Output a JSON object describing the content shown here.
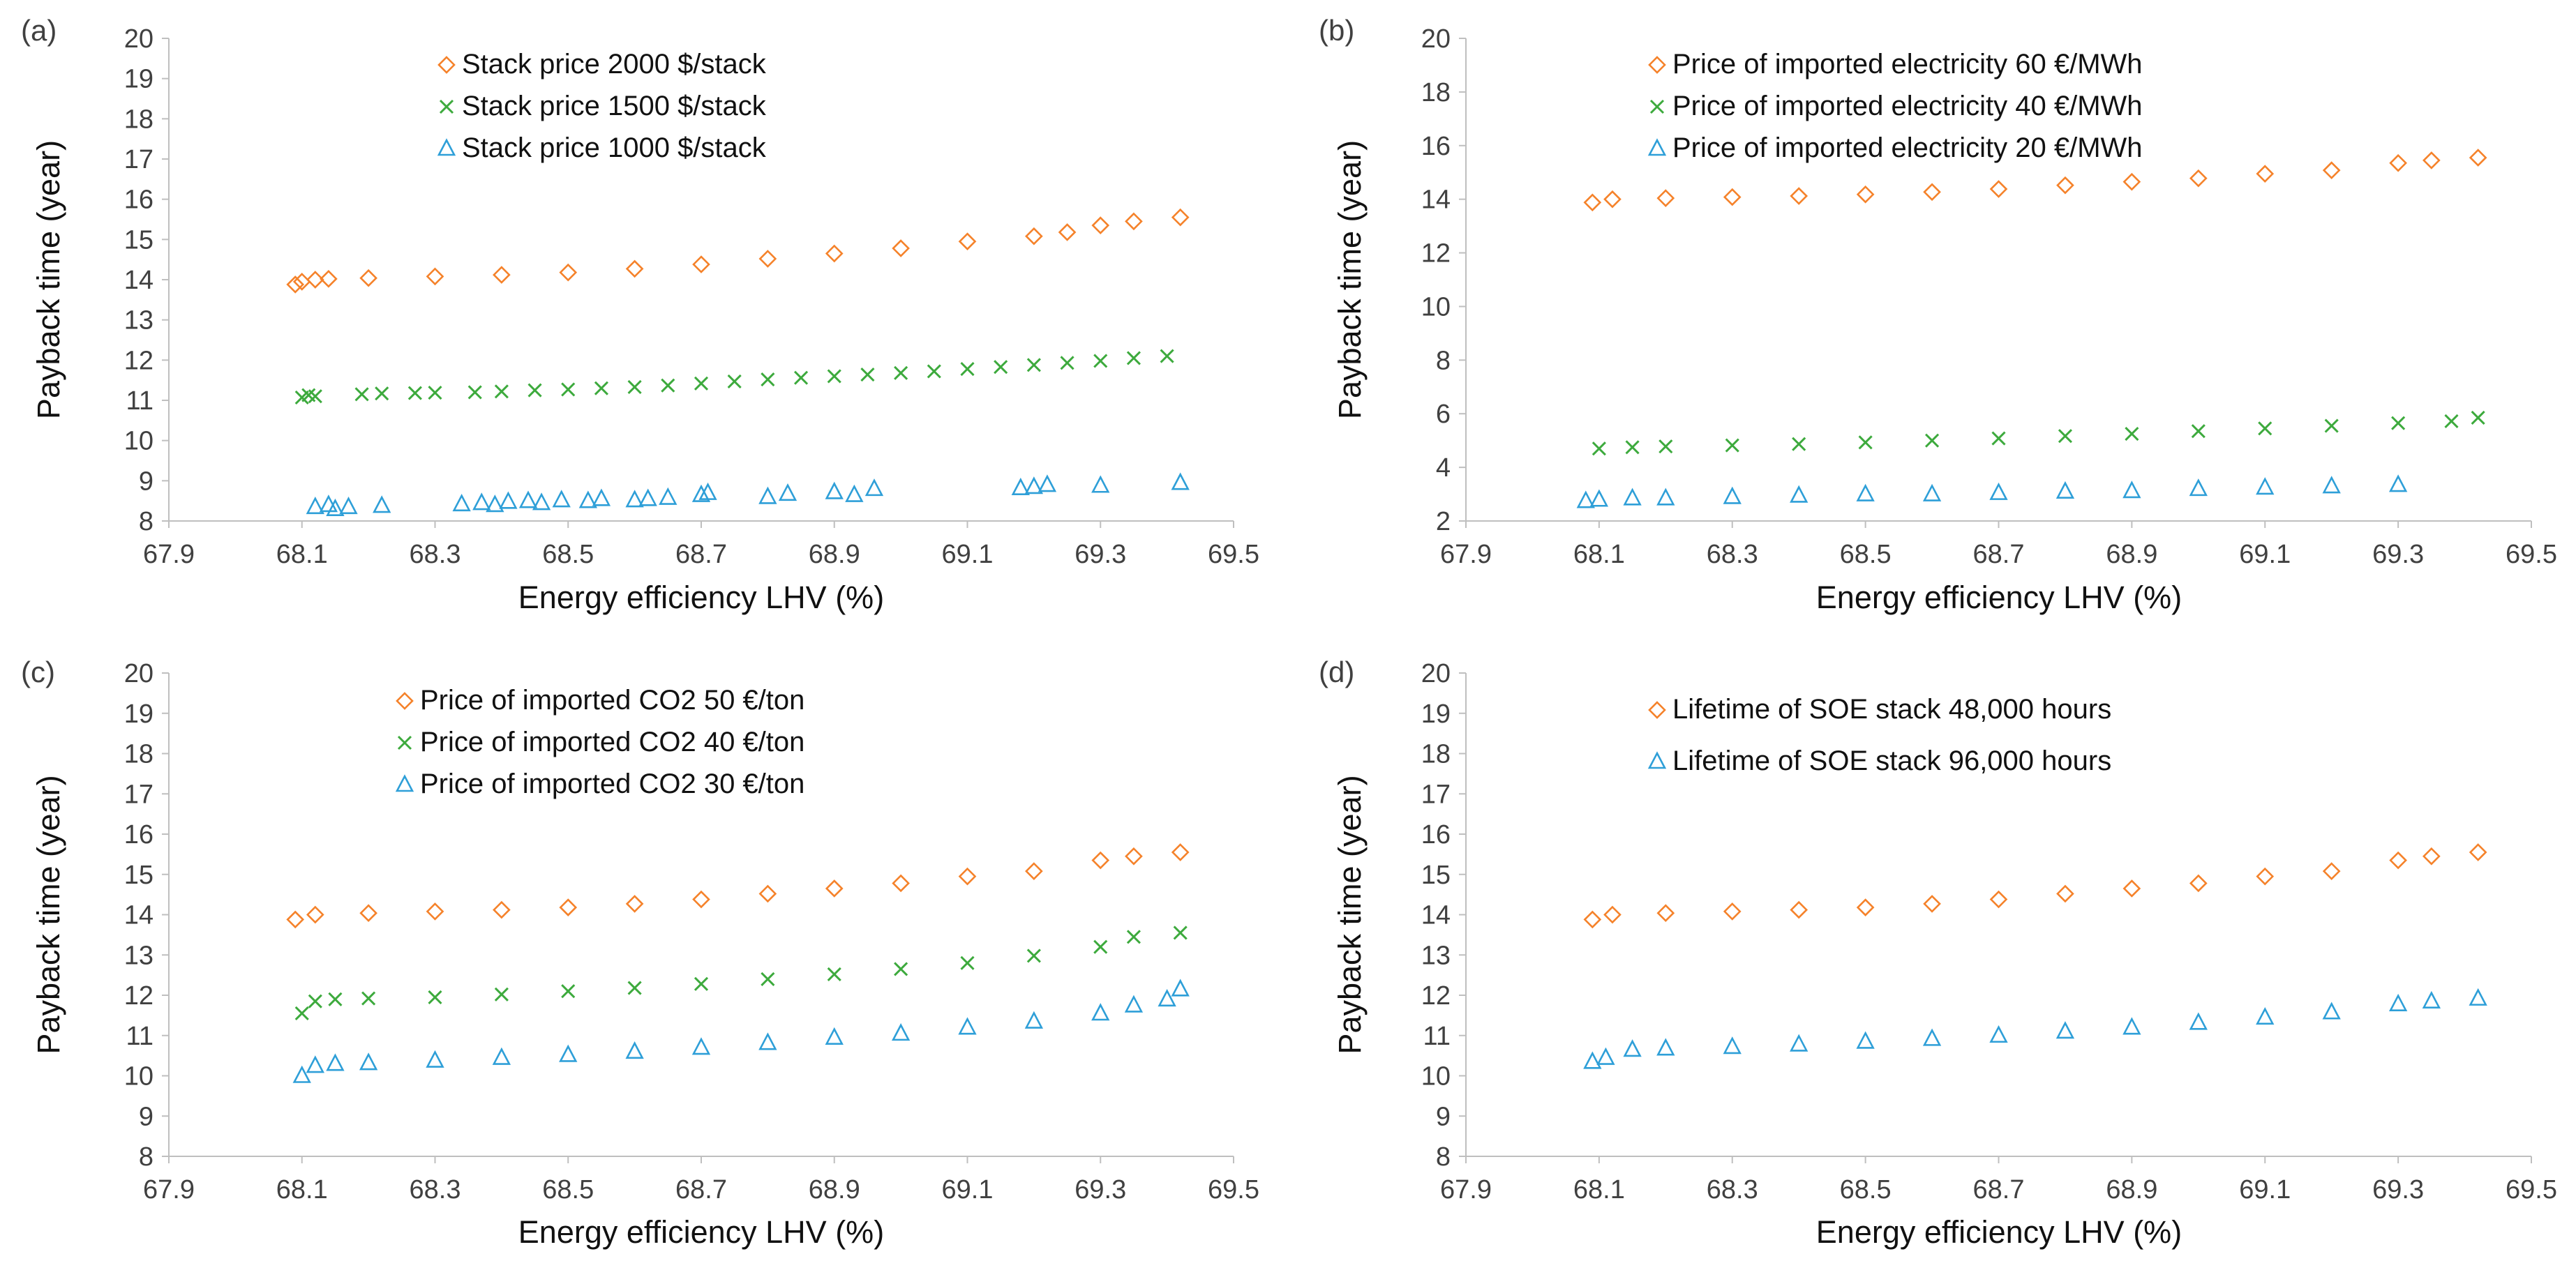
{
  "colors": {
    "orange": "#F5822A",
    "green": "#3DAA3D",
    "blue": "#2E9FD8",
    "axis": "#BFBFBF",
    "text": "#404040"
  },
  "chart_data": [
    {
      "panel": "(a)",
      "type": "scatter",
      "xlabel": "Energy efficiency LHV (%)",
      "ylabel": "Payback time (year)",
      "xlim": [
        67.9,
        69.5
      ],
      "ylim": [
        8,
        20
      ],
      "xticks": [
        "67.9",
        "68.1",
        "68.3",
        "68.5",
        "68.7",
        "68.9",
        "69.1",
        "69.3",
        "69.5"
      ],
      "yticks": [
        "8",
        "9",
        "10",
        "11",
        "12",
        "13",
        "14",
        "15",
        "16",
        "17",
        "18",
        "19",
        "20"
      ],
      "legend_position": "top-center",
      "series": [
        {
          "name": "Stack price 2000 $/stack",
          "marker": "diamond",
          "color": "#F5822A",
          "points": [
            [
              68.09,
              13.88
            ],
            [
              68.1,
              13.95
            ],
            [
              68.12,
              14.0
            ],
            [
              68.14,
              14.02
            ],
            [
              68.2,
              14.04
            ],
            [
              68.3,
              14.08
            ],
            [
              68.4,
              14.12
            ],
            [
              68.5,
              14.18
            ],
            [
              68.6,
              14.27
            ],
            [
              68.7,
              14.38
            ],
            [
              68.8,
              14.52
            ],
            [
              68.9,
              14.65
            ],
            [
              69.0,
              14.78
            ],
            [
              69.1,
              14.95
            ],
            [
              69.2,
              15.08
            ],
            [
              69.25,
              15.18
            ],
            [
              69.3,
              15.35
            ],
            [
              69.35,
              15.45
            ],
            [
              69.42,
              15.55
            ]
          ]
        },
        {
          "name": "Stack price 1500 $/stack",
          "marker": "x",
          "color": "#3DAA3D",
          "points": [
            [
              68.1,
              11.07
            ],
            [
              68.11,
              11.13
            ],
            [
              68.12,
              11.1
            ],
            [
              68.19,
              11.15
            ],
            [
              68.22,
              11.17
            ],
            [
              68.27,
              11.18
            ],
            [
              68.3,
              11.19
            ],
            [
              68.36,
              11.2
            ],
            [
              68.4,
              11.22
            ],
            [
              68.45,
              11.25
            ],
            [
              68.5,
              11.27
            ],
            [
              68.55,
              11.3
            ],
            [
              68.6,
              11.33
            ],
            [
              68.65,
              11.37
            ],
            [
              68.7,
              11.42
            ],
            [
              68.75,
              11.47
            ],
            [
              68.8,
              11.52
            ],
            [
              68.85,
              11.56
            ],
            [
              68.9,
              11.6
            ],
            [
              68.95,
              11.64
            ],
            [
              69.0,
              11.68
            ],
            [
              69.05,
              11.72
            ],
            [
              69.1,
              11.78
            ],
            [
              69.15,
              11.83
            ],
            [
              69.2,
              11.88
            ],
            [
              69.25,
              11.93
            ],
            [
              69.3,
              11.98
            ],
            [
              69.35,
              12.05
            ],
            [
              69.4,
              12.1
            ]
          ]
        },
        {
          "name": "Stack price 1000 $/stack",
          "marker": "triangle",
          "color": "#2E9FD8",
          "points": [
            [
              68.12,
              8.35
            ],
            [
              68.14,
              8.4
            ],
            [
              68.15,
              8.3
            ],
            [
              68.17,
              8.35
            ],
            [
              68.22,
              8.38
            ],
            [
              68.34,
              8.42
            ],
            [
              68.37,
              8.45
            ],
            [
              68.39,
              8.4
            ],
            [
              68.41,
              8.48
            ],
            [
              68.44,
              8.5
            ],
            [
              68.46,
              8.45
            ],
            [
              68.49,
              8.52
            ],
            [
              68.53,
              8.5
            ],
            [
              68.55,
              8.55
            ],
            [
              68.6,
              8.52
            ],
            [
              68.62,
              8.55
            ],
            [
              68.65,
              8.58
            ],
            [
              68.7,
              8.65
            ],
            [
              68.71,
              8.7
            ],
            [
              68.8,
              8.6
            ],
            [
              68.83,
              8.68
            ],
            [
              68.9,
              8.72
            ],
            [
              68.93,
              8.65
            ],
            [
              68.96,
              8.8
            ],
            [
              69.18,
              8.82
            ],
            [
              69.2,
              8.85
            ],
            [
              69.22,
              8.9
            ],
            [
              69.3,
              8.88
            ],
            [
              69.42,
              8.95
            ]
          ]
        }
      ]
    },
    {
      "panel": "(b)",
      "type": "scatter",
      "xlabel": "Energy efficiency LHV (%)",
      "ylabel": "Payback time (year)",
      "xlim": [
        67.9,
        69.5
      ],
      "ylim": [
        2,
        20
      ],
      "xticks": [
        "67.9",
        "68.1",
        "68.3",
        "68.5",
        "68.7",
        "68.9",
        "69.1",
        "69.3",
        "69.5"
      ],
      "yticks": [
        "2",
        "4",
        "6",
        "8",
        "10",
        "12",
        "14",
        "16",
        "18",
        "20"
      ],
      "legend_position": "top-center",
      "series": [
        {
          "name": "Price of imported electricity 60 €/MWh",
          "marker": "diamond",
          "color": "#F5822A",
          "points": [
            [
              68.09,
              13.88
            ],
            [
              68.12,
              14.0
            ],
            [
              68.2,
              14.04
            ],
            [
              68.3,
              14.08
            ],
            [
              68.4,
              14.12
            ],
            [
              68.5,
              14.18
            ],
            [
              68.6,
              14.27
            ],
            [
              68.7,
              14.38
            ],
            [
              68.8,
              14.52
            ],
            [
              68.9,
              14.65
            ],
            [
              69.0,
              14.78
            ],
            [
              69.1,
              14.95
            ],
            [
              69.2,
              15.08
            ],
            [
              69.3,
              15.35
            ],
            [
              69.35,
              15.45
            ],
            [
              69.42,
              15.55
            ]
          ]
        },
        {
          "name": "Price of imported electricity 40 €/MWh",
          "marker": "x",
          "color": "#3DAA3D",
          "points": [
            [
              68.1,
              4.7
            ],
            [
              68.15,
              4.75
            ],
            [
              68.2,
              4.78
            ],
            [
              68.3,
              4.82
            ],
            [
              68.4,
              4.87
            ],
            [
              68.5,
              4.93
            ],
            [
              68.6,
              5.0
            ],
            [
              68.7,
              5.08
            ],
            [
              68.8,
              5.17
            ],
            [
              68.9,
              5.25
            ],
            [
              69.0,
              5.35
            ],
            [
              69.1,
              5.45
            ],
            [
              69.2,
              5.55
            ],
            [
              69.3,
              5.65
            ],
            [
              69.38,
              5.72
            ],
            [
              69.42,
              5.85
            ]
          ]
        },
        {
          "name": "Price of imported electricity 20 €/MWh",
          "marker": "triangle",
          "color": "#2E9FD8",
          "points": [
            [
              68.08,
              2.75
            ],
            [
              68.1,
              2.8
            ],
            [
              68.15,
              2.85
            ],
            [
              68.2,
              2.85
            ],
            [
              68.3,
              2.9
            ],
            [
              68.4,
              2.95
            ],
            [
              68.5,
              3.0
            ],
            [
              68.6,
              3.0
            ],
            [
              68.7,
              3.05
            ],
            [
              68.8,
              3.1
            ],
            [
              68.9,
              3.12
            ],
            [
              69.0,
              3.2
            ],
            [
              69.1,
              3.25
            ],
            [
              69.2,
              3.3
            ],
            [
              69.3,
              3.35
            ]
          ]
        }
      ]
    },
    {
      "panel": "(c)",
      "type": "scatter",
      "xlabel": "Energy efficiency LHV (%)",
      "ylabel": "Payback time (year)",
      "xlim": [
        67.9,
        69.5
      ],
      "ylim": [
        8,
        20
      ],
      "xticks": [
        "67.9",
        "68.1",
        "68.3",
        "68.5",
        "68.7",
        "68.9",
        "69.1",
        "69.3",
        "69.5"
      ],
      "yticks": [
        "8",
        "9",
        "10",
        "11",
        "12",
        "13",
        "14",
        "15",
        "16",
        "17",
        "18",
        "19",
        "20"
      ],
      "legend_position": "top-center",
      "series": [
        {
          "name": "Price of imported CO2 50 €/ton",
          "marker": "diamond",
          "color": "#F5822A",
          "points": [
            [
              68.09,
              13.88
            ],
            [
              68.12,
              14.0
            ],
            [
              68.2,
              14.04
            ],
            [
              68.3,
              14.08
            ],
            [
              68.4,
              14.12
            ],
            [
              68.5,
              14.18
            ],
            [
              68.6,
              14.27
            ],
            [
              68.7,
              14.38
            ],
            [
              68.8,
              14.52
            ],
            [
              68.9,
              14.65
            ],
            [
              69.0,
              14.78
            ],
            [
              69.1,
              14.95
            ],
            [
              69.2,
              15.08
            ],
            [
              69.3,
              15.35
            ],
            [
              69.35,
              15.45
            ],
            [
              69.42,
              15.55
            ]
          ]
        },
        {
          "name": "Price of imported CO2 40 €/ton",
          "marker": "x",
          "color": "#3DAA3D",
          "points": [
            [
              68.1,
              11.55
            ],
            [
              68.12,
              11.85
            ],
            [
              68.15,
              11.9
            ],
            [
              68.2,
              11.92
            ],
            [
              68.3,
              11.95
            ],
            [
              68.4,
              12.02
            ],
            [
              68.5,
              12.1
            ],
            [
              68.6,
              12.18
            ],
            [
              68.7,
              12.28
            ],
            [
              68.8,
              12.4
            ],
            [
              68.9,
              12.52
            ],
            [
              69.0,
              12.65
            ],
            [
              69.1,
              12.8
            ],
            [
              69.2,
              12.98
            ],
            [
              69.3,
              13.2
            ],
            [
              69.35,
              13.45
            ],
            [
              69.42,
              13.55
            ]
          ]
        },
        {
          "name": "Price of imported CO2 30 €/ton",
          "marker": "triangle",
          "color": "#2E9FD8",
          "points": [
            [
              68.1,
              10.0
            ],
            [
              68.12,
              10.25
            ],
            [
              68.15,
              10.3
            ],
            [
              68.2,
              10.32
            ],
            [
              68.3,
              10.38
            ],
            [
              68.4,
              10.45
            ],
            [
              68.5,
              10.52
            ],
            [
              68.6,
              10.6
            ],
            [
              68.7,
              10.7
            ],
            [
              68.8,
              10.82
            ],
            [
              68.9,
              10.95
            ],
            [
              69.0,
              11.05
            ],
            [
              69.1,
              11.2
            ],
            [
              69.2,
              11.35
            ],
            [
              69.3,
              11.55
            ],
            [
              69.35,
              11.75
            ],
            [
              69.4,
              11.9
            ],
            [
              69.42,
              12.15
            ]
          ]
        }
      ]
    },
    {
      "panel": "(d)",
      "type": "scatter",
      "xlabel": "Energy efficiency LHV (%)",
      "ylabel": "Payback time (year)",
      "xlim": [
        67.9,
        69.5
      ],
      "ylim": [
        8,
        20
      ],
      "xticks": [
        "67.9",
        "68.1",
        "68.3",
        "68.5",
        "68.7",
        "68.9",
        "69.1",
        "69.3",
        "69.5"
      ],
      "yticks": [
        "8",
        "9",
        "10",
        "11",
        "12",
        "13",
        "14",
        "15",
        "16",
        "17",
        "18",
        "19",
        "20"
      ],
      "legend_position": "top-center",
      "series": [
        {
          "name": "Lifetime of SOE stack 48,000 hours",
          "marker": "diamond",
          "color": "#F5822A",
          "points": [
            [
              68.09,
              13.88
            ],
            [
              68.12,
              14.0
            ],
            [
              68.2,
              14.04
            ],
            [
              68.3,
              14.08
            ],
            [
              68.4,
              14.12
            ],
            [
              68.5,
              14.18
            ],
            [
              68.6,
              14.27
            ],
            [
              68.7,
              14.38
            ],
            [
              68.8,
              14.52
            ],
            [
              68.9,
              14.65
            ],
            [
              69.0,
              14.78
            ],
            [
              69.1,
              14.95
            ],
            [
              69.2,
              15.08
            ],
            [
              69.3,
              15.35
            ],
            [
              69.35,
              15.45
            ],
            [
              69.42,
              15.55
            ]
          ]
        },
        {
          "name": "Lifetime of SOE stack 96,000 hours",
          "marker": "triangle",
          "color": "#2E9FD8",
          "points": [
            [
              68.09,
              10.35
            ],
            [
              68.11,
              10.45
            ],
            [
              68.15,
              10.65
            ],
            [
              68.2,
              10.68
            ],
            [
              68.3,
              10.72
            ],
            [
              68.4,
              10.78
            ],
            [
              68.5,
              10.85
            ],
            [
              68.6,
              10.92
            ],
            [
              68.7,
              11.0
            ],
            [
              68.8,
              11.1
            ],
            [
              68.9,
              11.2
            ],
            [
              69.0,
              11.32
            ],
            [
              69.1,
              11.45
            ],
            [
              69.2,
              11.58
            ],
            [
              69.3,
              11.78
            ],
            [
              69.35,
              11.85
            ],
            [
              69.42,
              11.92
            ]
          ]
        }
      ]
    }
  ]
}
